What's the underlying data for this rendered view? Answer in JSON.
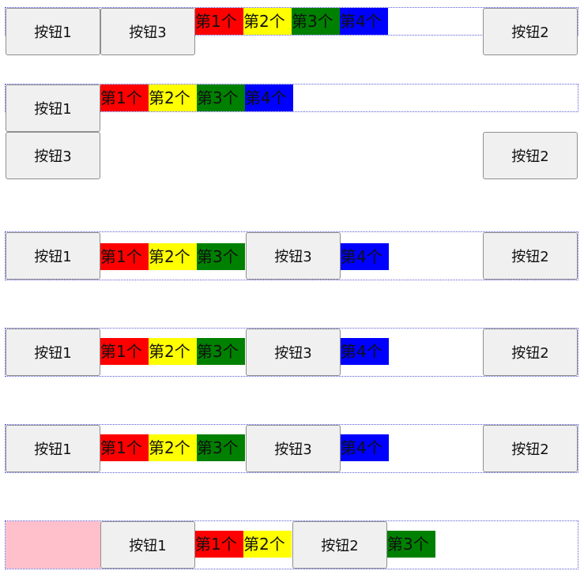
{
  "colors": {
    "frame_border": "#5b5bd6",
    "button_bg": "#f0f0f0",
    "button_border": "#8f8f8f",
    "tile_red": "#ff0000",
    "tile_yellow": "#ffff00",
    "tile_green": "#008000",
    "tile_blue": "#0000ff",
    "placeholder_pink": "#ffc0cb"
  },
  "demos": [
    {
      "buttons": [
        "按钮1",
        "按钮3",
        "按钮2"
      ],
      "tiles": [
        "第1个",
        "第2个",
        "第3个",
        "第4个"
      ]
    },
    {
      "buttons": [
        "按钮1",
        "按钮3",
        "按钮2"
      ],
      "tiles": [
        "第1个",
        "第2个",
        "第3个",
        "第4个"
      ]
    },
    {
      "buttons": [
        "按钮1",
        "按钮3",
        "按钮2"
      ],
      "tiles": [
        "第1个",
        "第2个",
        "第3个",
        "第4个"
      ]
    },
    {
      "buttons": [
        "按钮1",
        "按钮3",
        "按钮2"
      ],
      "tiles": [
        "第1个",
        "第2个",
        "第3个",
        "第4个"
      ]
    },
    {
      "buttons": [
        "按钮1",
        "按钮3",
        "按钮2"
      ],
      "tiles": [
        "第1个",
        "第2个",
        "第3个",
        "第4个"
      ]
    },
    {
      "buttons": [
        "按钮1",
        "按钮2"
      ],
      "tiles": [
        "第1个",
        "第2个",
        "第3个"
      ]
    }
  ]
}
